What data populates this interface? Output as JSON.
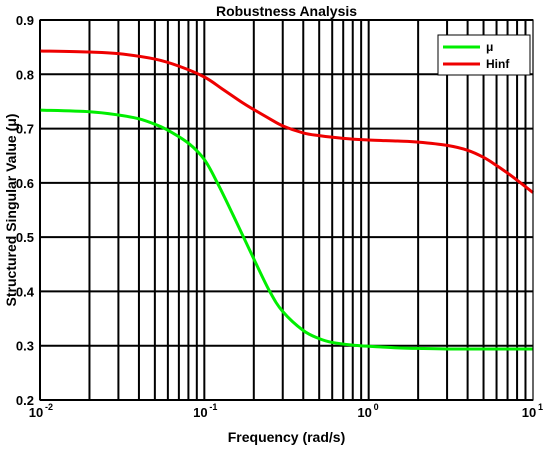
{
  "chart_data": {
    "type": "line",
    "title": "Robustness Analysis",
    "xlabel": "Frequency (rad/s)",
    "ylabel": "Structured Singular Value (μ)",
    "x_scale": "log",
    "xlim": [
      0.01,
      10
    ],
    "ylim": [
      0.2,
      0.9
    ],
    "x_ticks": [
      0.01,
      0.1,
      1,
      10
    ],
    "x_tick_labels": [
      {
        "base": "10",
        "exp": "-2"
      },
      {
        "base": "10",
        "exp": "-1"
      },
      {
        "base": "10",
        "exp": "0"
      },
      {
        "base": "10",
        "exp": "1"
      }
    ],
    "y_ticks": [
      0.2,
      0.3,
      0.4,
      0.5,
      0.6,
      0.7,
      0.8,
      0.9
    ],
    "y_tick_labels": [
      "0.2",
      "0.3",
      "0.4",
      "0.5",
      "0.6",
      "0.7",
      "0.8",
      "0.9"
    ],
    "grid": true,
    "legend_position": "top-right",
    "series": [
      {
        "name": "μ",
        "color": "#00ee00",
        "x": [
          0.01,
          0.02,
          0.03,
          0.04,
          0.05,
          0.06,
          0.08,
          0.1,
          0.12,
          0.15,
          0.2,
          0.25,
          0.3,
          0.4,
          0.5,
          0.6,
          0.8,
          1,
          1.5,
          2,
          3,
          5,
          7,
          10
        ],
        "y": [
          0.734,
          0.731,
          0.725,
          0.718,
          0.708,
          0.697,
          0.673,
          0.643,
          0.6,
          0.54,
          0.46,
          0.4,
          0.363,
          0.328,
          0.313,
          0.306,
          0.301,
          0.299,
          0.296,
          0.295,
          0.294,
          0.294,
          0.294,
          0.294
        ]
      },
      {
        "name": "Hinf",
        "color": "#ee0000",
        "x": [
          0.01,
          0.02,
          0.03,
          0.05,
          0.07,
          0.1,
          0.13,
          0.17,
          0.2,
          0.25,
          0.3,
          0.4,
          0.5,
          0.7,
          1,
          1.5,
          2,
          3,
          4,
          5,
          6,
          7,
          8,
          9,
          10
        ],
        "y": [
          0.843,
          0.841,
          0.838,
          0.828,
          0.815,
          0.795,
          0.772,
          0.748,
          0.735,
          0.718,
          0.705,
          0.692,
          0.687,
          0.682,
          0.679,
          0.677,
          0.675,
          0.669,
          0.66,
          0.647,
          0.632,
          0.618,
          0.605,
          0.593,
          0.582
        ]
      }
    ]
  }
}
